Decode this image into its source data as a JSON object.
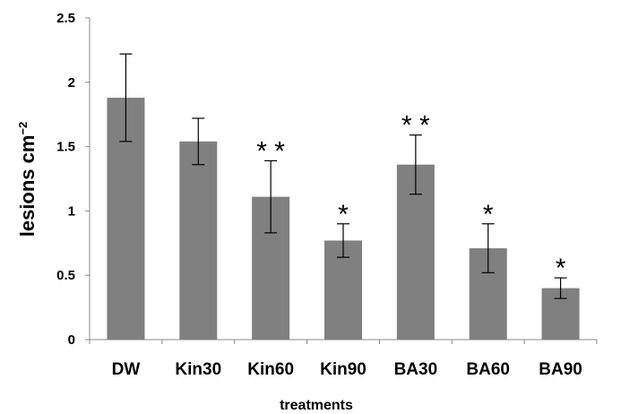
{
  "chart_data": {
    "type": "bar",
    "title": "",
    "xlabel": "treatments",
    "ylabel_main": "lesions cm",
    "ylabel_sup": "−2",
    "ylim": [
      0,
      2.5
    ],
    "yticks": [
      0,
      0.5,
      1,
      1.5,
      2,
      2.5
    ],
    "ytick_labels": [
      "0",
      "0.5",
      "1",
      "1.5",
      "2",
      "2.5"
    ],
    "categories": [
      "DW",
      "Kin30",
      "Kin60",
      "Kin90",
      "BA30",
      "BA60",
      "BA90"
    ],
    "values": [
      1.88,
      1.54,
      1.11,
      0.77,
      1.36,
      0.71,
      0.4
    ],
    "errors": [
      0.34,
      0.18,
      0.28,
      0.13,
      0.23,
      0.19,
      0.08
    ],
    "significance": [
      "",
      "",
      "* *",
      "*",
      "* *",
      "*",
      "*"
    ],
    "bar_color": "#808080",
    "grid": false,
    "legend": false
  }
}
